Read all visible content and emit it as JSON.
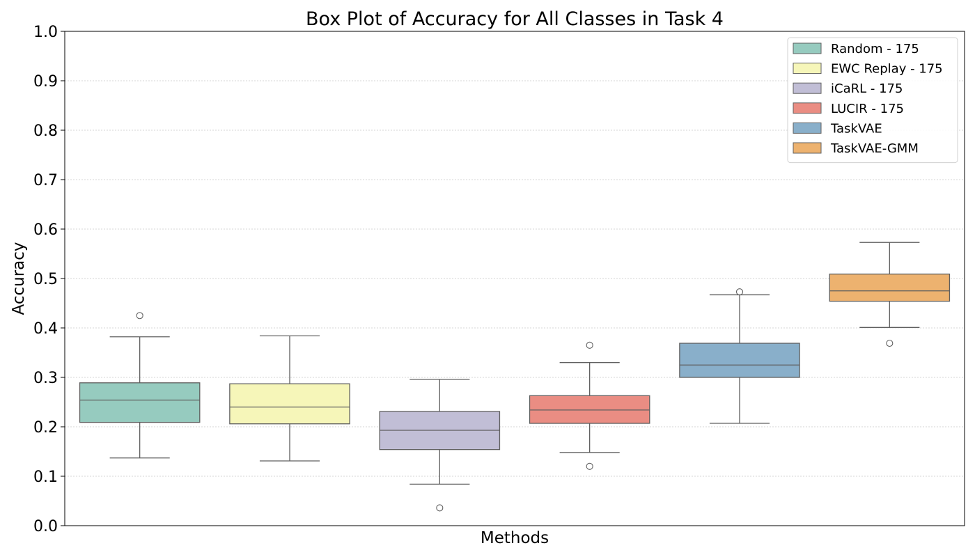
{
  "chart_data": {
    "type": "box",
    "title": "Box Plot of Accuracy for All Classes in Task 4",
    "xlabel": "Methods",
    "ylabel": "Accuracy",
    "ylim": [
      0.0,
      1.0
    ],
    "yticks": [
      "0.0",
      "0.1",
      "0.2",
      "0.3",
      "0.4",
      "0.5",
      "0.6",
      "0.7",
      "0.8",
      "0.9",
      "1.0"
    ],
    "grid": "horizontal dotted",
    "legend_position": "top-right",
    "series": [
      {
        "name": "Random - 175",
        "color": "#96cbbf",
        "whisker_low": 0.137,
        "q1": 0.209,
        "median": 0.254,
        "q3": 0.289,
        "whisker_high": 0.382,
        "outliers": [
          0.425
        ]
      },
      {
        "name": "EWC Replay - 175",
        "color": "#f6f6b9",
        "whisker_low": 0.131,
        "q1": 0.206,
        "median": 0.24,
        "q3": 0.287,
        "whisker_high": 0.384,
        "outliers": []
      },
      {
        "name": "iCaRL - 175",
        "color": "#c1bed6",
        "whisker_low": 0.084,
        "q1": 0.154,
        "median": 0.193,
        "q3": 0.231,
        "whisker_high": 0.296,
        "outliers": [
          0.036
        ]
      },
      {
        "name": "LUCIR - 175",
        "color": "#ea8d83",
        "whisker_low": 0.148,
        "q1": 0.207,
        "median": 0.234,
        "q3": 0.263,
        "whisker_high": 0.33,
        "outliers": [
          0.365,
          0.12
        ]
      },
      {
        "name": "TaskVAE",
        "color": "#89afca",
        "whisker_low": 0.207,
        "q1": 0.3,
        "median": 0.325,
        "q3": 0.369,
        "whisker_high": 0.467,
        "outliers": [
          0.473
        ]
      },
      {
        "name": "TaskVAE-GMM",
        "color": "#edb26f",
        "whisker_low": 0.401,
        "q1": 0.454,
        "median": 0.475,
        "q3": 0.509,
        "whisker_high": 0.573,
        "outliers": [
          0.369
        ]
      }
    ]
  }
}
